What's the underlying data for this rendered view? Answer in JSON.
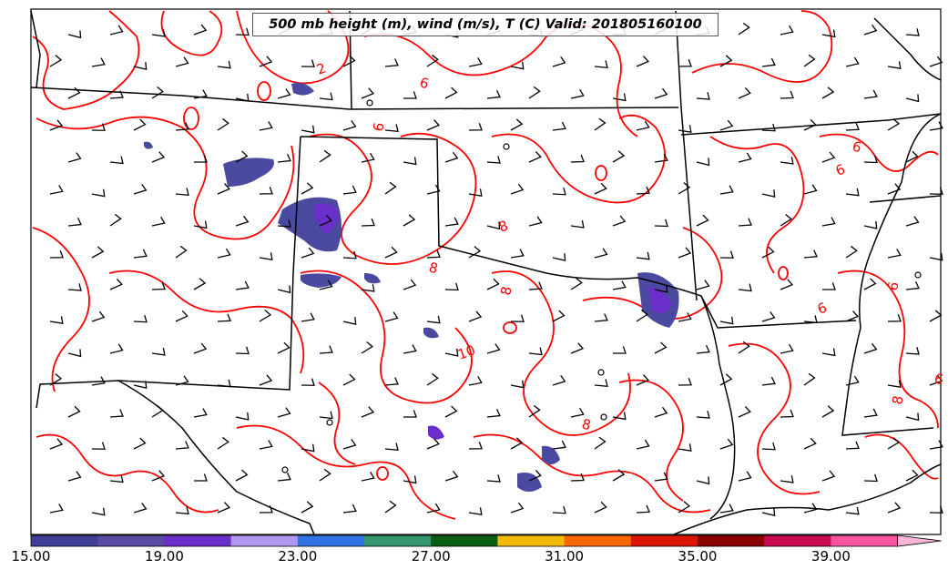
{
  "title": "500 mb height (m), wind (m/s), T (C) Valid: 201805160100",
  "colorbar": {
    "colors": [
      "#3f3f97",
      "#584da3",
      "#6a2fc8",
      "#b199f1",
      "#3173e3",
      "#35956c",
      "#0a5e11",
      "#f2ba0a",
      "#fe6601",
      "#db1503",
      "#8a0101",
      "#c80a50",
      "#f6549e",
      "#fbb5d6"
    ],
    "tick_labels": [
      "15.00",
      "19.00",
      "23.00",
      "27.00",
      "31.00",
      "35.00",
      "39.00"
    ]
  },
  "contour_labels": [
    "2",
    "6",
    "6",
    "8",
    "8",
    "8",
    "10",
    "8",
    "8",
    "6",
    "6",
    "6",
    "6",
    "6"
  ],
  "contour_color": "#ff0000",
  "state_line_color": "#000000"
}
